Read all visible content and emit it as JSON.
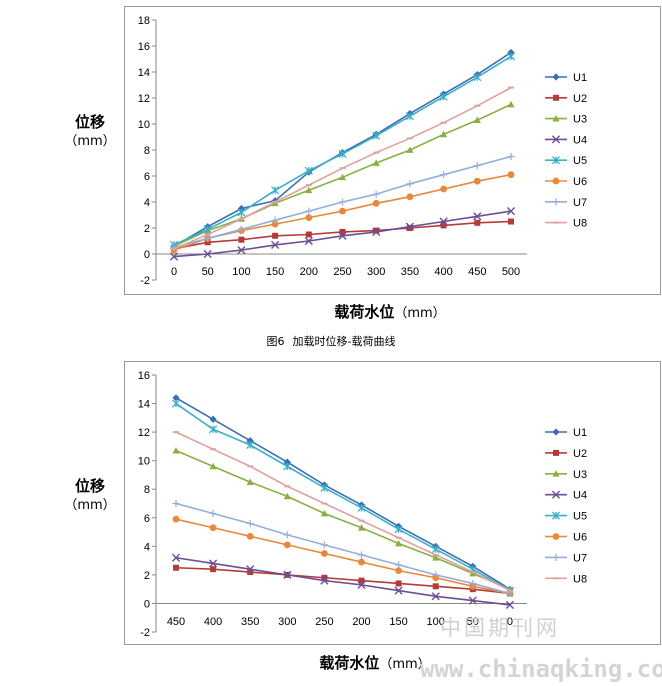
{
  "figure_caption": {
    "number": "图6",
    "text": "加载时位移-载荷曲线"
  },
  "watermark": {
    "cn": "中国期刊网",
    "url": "www.chinaqking.com"
  },
  "chart_data": [
    {
      "type": "line",
      "title": "",
      "xlabel": "载荷水位",
      "xlabel_unit": "（mm）",
      "ylabel": "位移",
      "ylabel_unit": "（mm）",
      "x": [
        0,
        50,
        100,
        150,
        200,
        250,
        300,
        350,
        400,
        450,
        500
      ],
      "xlim": [
        0,
        500
      ],
      "ylim": [
        -2,
        18
      ],
      "yticks": [
        -2,
        0,
        2,
        4,
        6,
        8,
        10,
        12,
        14,
        16,
        18
      ],
      "legend": "right",
      "grid": "horizontal",
      "series": [
        {
          "name": "U1",
          "color": "#3E6DB3",
          "marker": "diamond",
          "values": [
            0.6,
            2.1,
            3.5,
            4.1,
            6.3,
            7.8,
            9.2,
            10.8,
            12.3,
            13.8,
            15.5
          ]
        },
        {
          "name": "U2",
          "color": "#B73A3A",
          "marker": "square",
          "values": [
            0.4,
            0.9,
            1.1,
            1.4,
            1.5,
            1.7,
            1.8,
            2.0,
            2.2,
            2.4,
            2.5
          ]
        },
        {
          "name": "U3",
          "color": "#8BAF45",
          "marker": "triangle",
          "values": [
            0.6,
            1.8,
            2.7,
            3.9,
            4.9,
            5.9,
            7.0,
            8.0,
            9.2,
            10.3,
            11.5
          ]
        },
        {
          "name": "U4",
          "color": "#6B4E94",
          "marker": "x",
          "values": [
            -0.2,
            0.0,
            0.3,
            0.7,
            1.0,
            1.4,
            1.7,
            2.1,
            2.5,
            2.9,
            3.3
          ]
        },
        {
          "name": "U5",
          "color": "#3DAFC8",
          "marker": "star",
          "values": [
            0.7,
            1.9,
            3.2,
            4.9,
            6.4,
            7.7,
            9.1,
            10.6,
            12.1,
            13.6,
            15.2
          ]
        },
        {
          "name": "U6",
          "color": "#E8883A",
          "marker": "circle",
          "values": [
            0.3,
            1.2,
            1.8,
            2.3,
            2.8,
            3.3,
            3.9,
            4.4,
            5.0,
            5.6,
            6.1
          ]
        },
        {
          "name": "U7",
          "color": "#93AEDB",
          "marker": "plus",
          "values": [
            0.5,
            1.2,
            1.9,
            2.6,
            3.3,
            4.0,
            4.6,
            5.4,
            6.1,
            6.8,
            7.5
          ]
        },
        {
          "name": "U8",
          "color": "#E0A2A0",
          "marker": "dash",
          "values": [
            0.4,
            1.5,
            2.7,
            4.0,
            5.3,
            6.6,
            7.8,
            8.9,
            10.1,
            11.4,
            12.8
          ]
        }
      ]
    },
    {
      "type": "line",
      "title": "",
      "xlabel": "载荷水位",
      "xlabel_unit": "（mm）",
      "ylabel": "位移",
      "ylabel_unit": "（mm）",
      "x": [
        450,
        400,
        350,
        300,
        250,
        200,
        150,
        100,
        50,
        0
      ],
      "xlim": [
        450,
        0
      ],
      "ylim": [
        -2,
        16
      ],
      "yticks": [
        -2,
        0,
        2,
        4,
        6,
        8,
        10,
        12,
        14,
        16
      ],
      "legend": "right",
      "grid": "horizontal",
      "series": [
        {
          "name": "U1",
          "color": "#3E6DB3",
          "marker": "diamond",
          "values": [
            14.4,
            12.9,
            11.4,
            9.9,
            8.3,
            6.9,
            5.4,
            4.0,
            2.6,
            1.0
          ]
        },
        {
          "name": "U2",
          "color": "#B73A3A",
          "marker": "square",
          "values": [
            2.5,
            2.4,
            2.2,
            2.0,
            1.8,
            1.6,
            1.4,
            1.2,
            1.0,
            0.7
          ]
        },
        {
          "name": "U3",
          "color": "#8BAF45",
          "marker": "triangle",
          "values": [
            10.7,
            9.6,
            8.5,
            7.5,
            6.3,
            5.3,
            4.2,
            3.2,
            2.1,
            1.0
          ]
        },
        {
          "name": "U4",
          "color": "#6B4E94",
          "marker": "x",
          "values": [
            3.2,
            2.8,
            2.4,
            2.0,
            1.6,
            1.3,
            0.9,
            0.5,
            0.2,
            -0.1
          ]
        },
        {
          "name": "U5",
          "color": "#3DAFC8",
          "marker": "star",
          "values": [
            14.0,
            12.2,
            11.1,
            9.6,
            8.1,
            6.7,
            5.2,
            3.8,
            2.4,
            0.9
          ]
        },
        {
          "name": "U6",
          "color": "#E8883A",
          "marker": "circle",
          "values": [
            5.9,
            5.3,
            4.7,
            4.1,
            3.5,
            2.9,
            2.3,
            1.8,
            1.2,
            0.7
          ]
        },
        {
          "name": "U7",
          "color": "#93AEDB",
          "marker": "plus",
          "values": [
            7.0,
            6.3,
            5.6,
            4.8,
            4.1,
            3.4,
            2.7,
            2.0,
            1.4,
            0.7
          ]
        },
        {
          "name": "U8",
          "color": "#E0A2A0",
          "marker": "dash",
          "values": [
            12.0,
            10.8,
            9.6,
            8.2,
            7.0,
            5.8,
            4.6,
            3.4,
            2.2,
            0.9
          ]
        }
      ]
    }
  ]
}
